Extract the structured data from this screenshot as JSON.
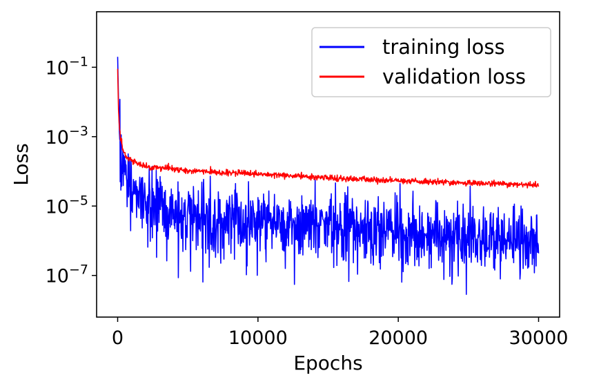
{
  "chart_data": {
    "type": "line",
    "title": "",
    "xlabel": "Epochs",
    "ylabel": "Loss",
    "xlim": [
      -1500,
      31500
    ],
    "ylim_log10": [
      -8.2,
      0.6
    ],
    "yscale": "log",
    "grid": false,
    "legend_position": "top-right",
    "x_ticks": [
      0,
      10000,
      20000,
      30000
    ],
    "x_tick_labels": [
      "0",
      "10000",
      "20000",
      "30000"
    ],
    "y_ticks_log10": [
      -1,
      -3,
      -5,
      -7
    ],
    "y_tick_labels": [
      {
        "base": "10",
        "exp": "−1"
      },
      {
        "base": "10",
        "exp": "−3"
      },
      {
        "base": "10",
        "exp": "−5"
      },
      {
        "base": "10",
        "exp": "−7"
      }
    ],
    "series": [
      {
        "name": "training loss",
        "color": "#0000ff",
        "x": [
          0,
          60,
          120,
          200,
          400,
          700,
          1000,
          1500,
          2000,
          3000,
          4000,
          5000,
          6000,
          7000,
          8000,
          10000,
          12000,
          14000,
          16000,
          18000,
          20000,
          22000,
          24000,
          26000,
          28000,
          30000
        ],
        "y": [
          0.2,
          0.012,
          0.0015,
          0.0003,
          0.00015,
          8e-05,
          4e-05,
          2e-05,
          1.2e-05,
          9e-06,
          7e-06,
          6e-06,
          5e-06,
          4.5e-06,
          4e-06,
          3.5e-06,
          3e-06,
          2.5e-06,
          2.2e-06,
          2e-06,
          1.8e-06,
          1.6e-06,
          1.4e-06,
          1.2e-06,
          1.1e-06,
          1e-06
        ]
      },
      {
        "name": "validation loss",
        "color": "#ff0000",
        "x": [
          0,
          60,
          120,
          200,
          400,
          700,
          1000,
          1500,
          2000,
          3000,
          4000,
          5000,
          6000,
          7000,
          8000,
          10000,
          12000,
          14000,
          16000,
          18000,
          20000,
          22000,
          24000,
          26000,
          28000,
          30000
        ],
        "y": [
          0.09,
          0.006,
          0.002,
          0.0009,
          0.0004,
          0.00025,
          0.0002,
          0.00016,
          0.00014,
          0.000125,
          0.000115,
          0.000105,
          0.0001,
          9.5e-05,
          9e-05,
          8.2e-05,
          7.5e-05,
          6.8e-05,
          6.2e-05,
          5.7e-05,
          5.3e-05,
          5e-05,
          4.7e-05,
          4.5e-05,
          4.3e-05,
          4e-05
        ]
      }
    ]
  }
}
